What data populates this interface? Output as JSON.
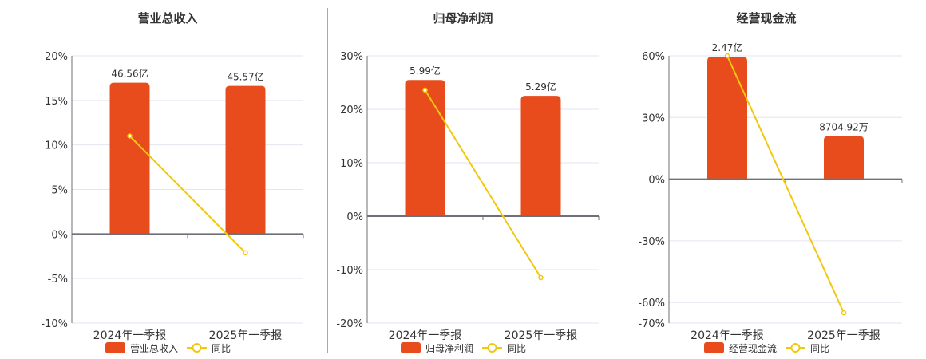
{
  "colors": {
    "bar": "#e84c1c",
    "line": "#f2c80f",
    "grid": "#e3e6f0",
    "axis": "#6e7079",
    "text": "#333333"
  },
  "chart_data": [
    {
      "type": "bar+line",
      "title": "营业总收入",
      "categories": [
        "2024年一季报",
        "2025年一季报"
      ],
      "bar_series": {
        "name": "营业总收入",
        "values": [
          46.56,
          45.57
        ],
        "labels": [
          "46.56亿",
          "45.57亿"
        ],
        "unit": "亿"
      },
      "line_series": {
        "name": "同比",
        "values": [
          11.0,
          -2.1
        ],
        "unit": "%"
      },
      "ylim": [
        -10,
        20
      ],
      "yticks": [
        20,
        15,
        10,
        5,
        0,
        -5,
        -10
      ],
      "ytick_labels": [
        "20%",
        "15%",
        "10%",
        "5%",
        "0%",
        "-5%",
        "-10%"
      ],
      "grid": true,
      "legend": "bottom"
    },
    {
      "type": "bar+line",
      "title": "归母净利润",
      "categories": [
        "2024年一季报",
        "2025年一季报"
      ],
      "bar_series": {
        "name": "归母净利润",
        "values": [
          5.99,
          5.29
        ],
        "labels": [
          "5.99亿",
          "5.29亿"
        ],
        "unit": "亿"
      },
      "line_series": {
        "name": "同比",
        "values": [
          23.6,
          -11.5
        ],
        "unit": "%"
      },
      "ylim": [
        -20,
        30
      ],
      "yticks": [
        30,
        20,
        10,
        0,
        -10,
        -20
      ],
      "ytick_labels": [
        "30%",
        "20%",
        "10%",
        "0%",
        "-10%",
        "-20%"
      ],
      "grid": true,
      "legend": "bottom"
    },
    {
      "type": "bar+line",
      "title": "经营现金流",
      "categories": [
        "2024年一季报",
        "2025年一季报"
      ],
      "bar_series": {
        "name": "经营现金流",
        "values": [
          2.47,
          0.870492
        ],
        "labels": [
          "2.47亿",
          "8704.92万"
        ],
        "unit": "亿"
      },
      "line_series": {
        "name": "同比",
        "values": [
          60.0,
          -65.0
        ],
        "unit": "%"
      },
      "ylim": [
        -70,
        60
      ],
      "yticks": [
        60,
        30,
        0,
        -30,
        -60,
        -70
      ],
      "ytick_labels": [
        "60%",
        "30%",
        "0%",
        "-30%",
        "-60%",
        "-70%"
      ],
      "grid": true,
      "legend": "bottom"
    }
  ]
}
